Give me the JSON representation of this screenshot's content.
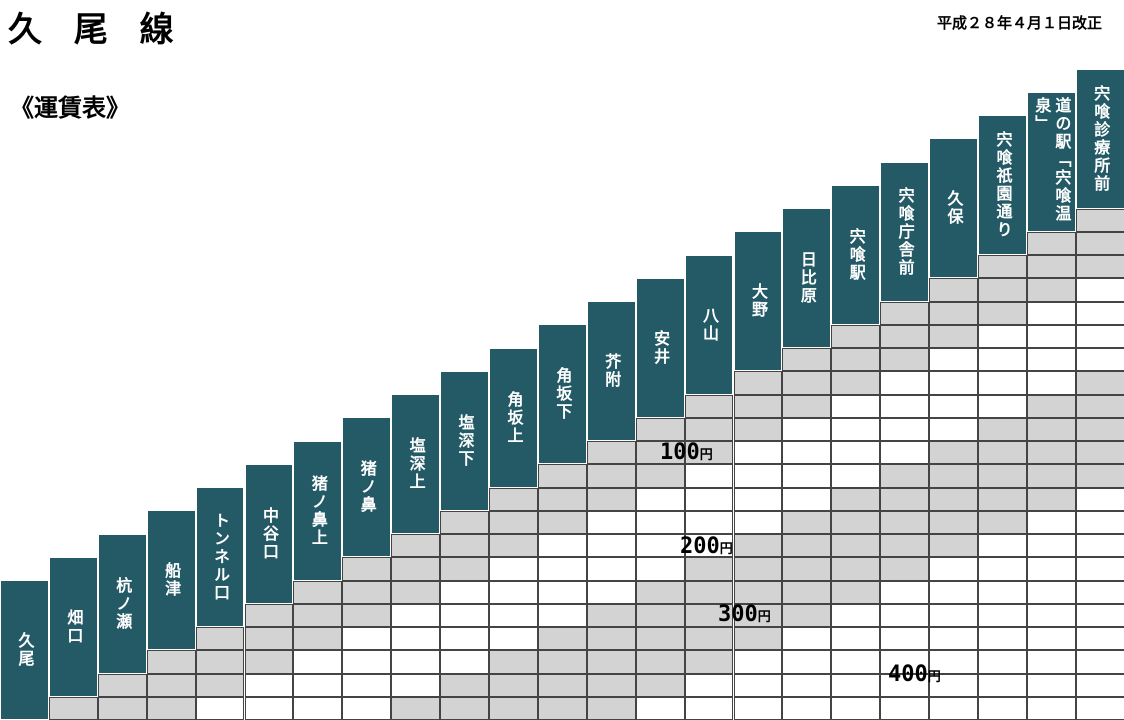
{
  "header": {
    "title": "久 尾 線",
    "revision_date": "平成２８年４月１日改正",
    "subtitle": "《運賃表》"
  },
  "stations": [
    "久尾",
    "畑口",
    "杭ノ瀬",
    "船津",
    "トンネル口",
    "中谷口",
    "猪ノ鼻上",
    "猪ノ鼻",
    "塩深上",
    "塩深下",
    "角坂上",
    "角坂下",
    "芥附",
    "安井",
    "八山",
    "大野",
    "日比原",
    "宍喰駅",
    "宍喰庁舎前",
    "久保",
    "宍喰祇園通り",
    "道の駅「宍喰温泉」",
    "宍喰診療所前"
  ],
  "fare_labels": [
    {
      "amount": "100",
      "unit": "円"
    },
    {
      "amount": "200",
      "unit": "円"
    },
    {
      "amount": "300",
      "unit": "円"
    },
    {
      "amount": "400",
      "unit": "円"
    }
  ],
  "colors": {
    "station_bg": "#235a66",
    "station_text": "#ffffff",
    "zone_100": "#d3d3d3",
    "zone_200": "#ffffff",
    "zone_300": "#d3d3d3",
    "zone_400": "#ffffff"
  }
}
